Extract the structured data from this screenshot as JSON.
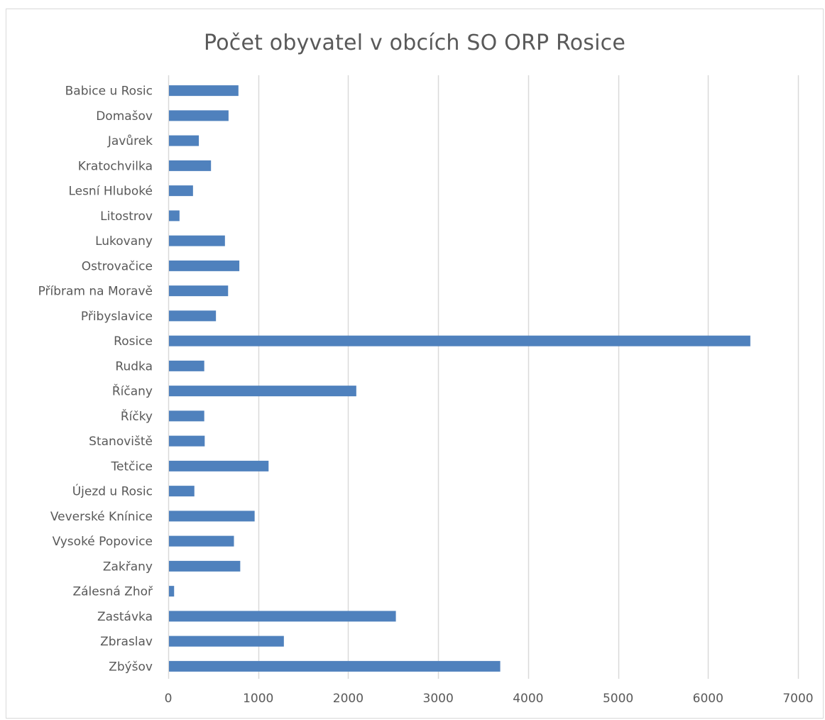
{
  "chart_data": {
    "type": "bar",
    "orientation": "horizontal",
    "title": "Počet obyvatel v obcích SO ORP Rosice",
    "xlabel": "",
    "ylabel": "",
    "categories": [
      "Babice u Rosic",
      "Domašov",
      "Javůrek",
      "Kratochvilka",
      "Lesní Hluboké",
      "Litostrov",
      "Lukovany",
      "Ostrovačice",
      "Příbram na Moravě",
      "Přibyslavice",
      "Rosice",
      "Rudka",
      "Říčany",
      "Říčky",
      "Stanoviště",
      "Tetčice",
      "Újezd u Rosic",
      "Veverské Knínice",
      "Vysoké Popovice",
      "Zakřany",
      "Zálesná Zhoř",
      "Zastávka",
      "Zbraslav",
      "Zbýšov"
    ],
    "values": [
      780,
      670,
      340,
      475,
      275,
      125,
      630,
      790,
      665,
      530,
      6470,
      400,
      2090,
      400,
      405,
      1115,
      290,
      960,
      730,
      800,
      65,
      2530,
      1285,
      3690
    ],
    "xlim": [
      0,
      7000
    ],
    "xticks": [
      0,
      1000,
      2000,
      3000,
      4000,
      5000,
      6000,
      7000
    ],
    "xtick_labels": [
      "0",
      "1000",
      "2000",
      "3000",
      "4000",
      "5000",
      "6000",
      "7000"
    ],
    "grid": "vertical",
    "bar_color": "#4f81bd",
    "grid_color": "#d9d9d9",
    "legend": "none"
  }
}
